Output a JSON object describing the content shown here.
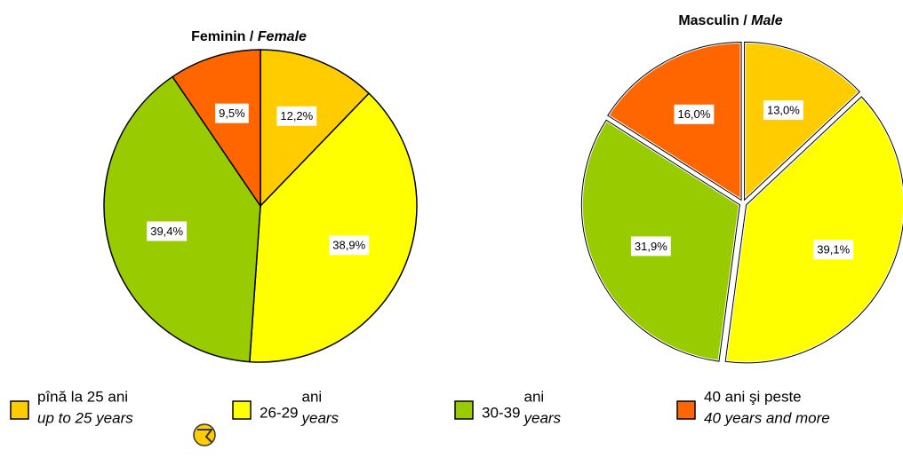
{
  "chart_data": [
    {
      "type": "pie",
      "title": [
        "Feminin / ",
        "Female"
      ],
      "values": [
        12.2,
        38.9,
        39.4,
        9.5
      ],
      "value_labels": [
        "12,2%",
        "38,9%",
        "39,4%",
        "9,5%"
      ],
      "colors": [
        "#FFCC00",
        "#FFFF00",
        "#99CC00",
        "#FF6600"
      ],
      "exploded": false
    },
    {
      "type": "pie",
      "title": [
        "Masculin / ",
        "Male"
      ],
      "values": [
        13.0,
        39.1,
        31.9,
        16.0
      ],
      "value_labels": [
        "13,0%",
        "39,1%",
        "31,9%",
        "16,0%"
      ],
      "colors": [
        "#FFCC00",
        "#FFFF00",
        "#99CC00",
        "#FF6600"
      ],
      "exploded": true
    }
  ],
  "legend": [
    {
      "ro": "pînă la 25 ani",
      "en": "up to 25 years"
    },
    {
      "prefix": "26-29",
      "ro": "ani",
      "en": "years"
    },
    {
      "prefix": "30-39",
      "ro": "ani",
      "en": "years"
    },
    {
      "ro": "40 ani şi peste",
      "en": "40 years and more"
    }
  ]
}
